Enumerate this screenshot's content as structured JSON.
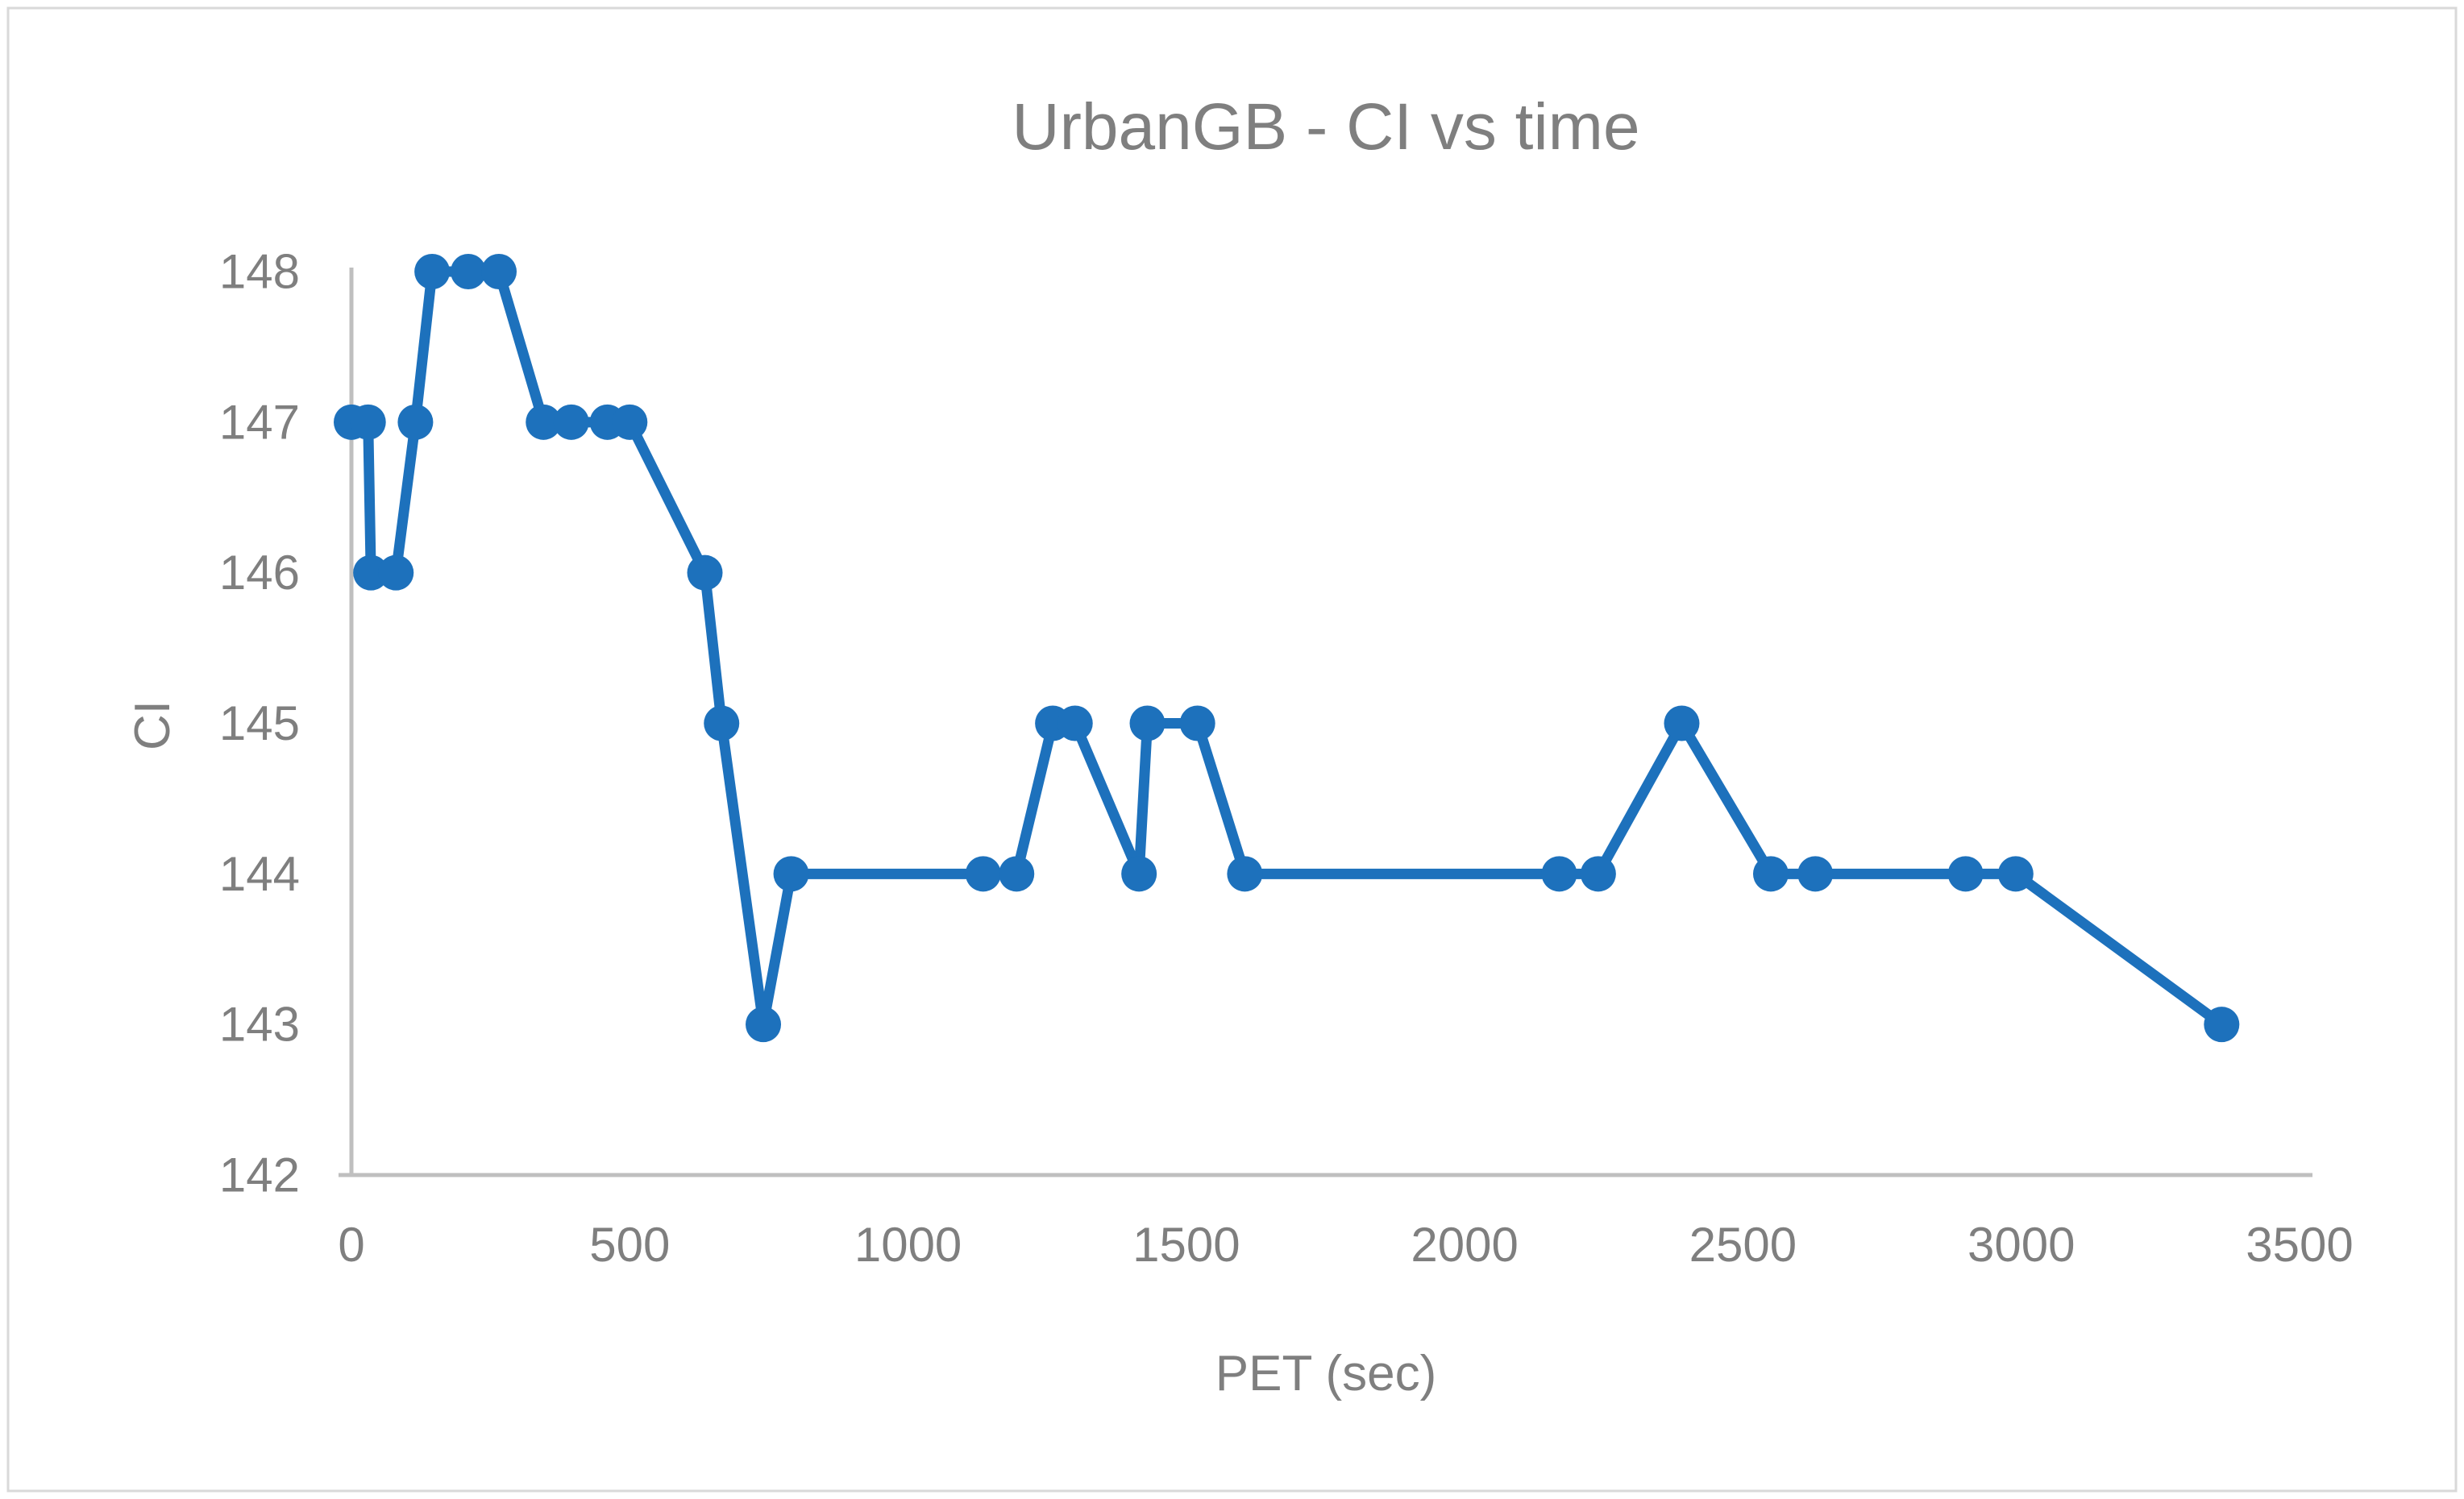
{
  "chart": {
    "title": "UrbanGB - CI vs time",
    "x_axis_title": "PET (sec)",
    "y_axis_title": "CI"
  },
  "colors": {
    "series": "#1d71bc",
    "axis_line": "#bfbfbf",
    "text": "#7f7f7f",
    "border": "#d9d9d9",
    "background": "#ffffff"
  },
  "chart_data": {
    "type": "line",
    "title": "UrbanGB - CI vs time",
    "xlabel": "PET (sec)",
    "ylabel": "CI",
    "xlim": [
      0,
      3500
    ],
    "ylim": [
      142,
      148
    ],
    "x_ticks": [
      0,
      500,
      1000,
      1500,
      2000,
      2500,
      3000,
      3500
    ],
    "y_ticks": [
      142,
      143,
      144,
      145,
      146,
      147,
      148
    ],
    "grid": false,
    "legend": false,
    "series": [
      {
        "name": "CI",
        "marker": "circle",
        "points": [
          [
            0,
            147
          ],
          [
            30,
            147
          ],
          [
            35,
            146
          ],
          [
            80,
            146
          ],
          [
            115,
            147
          ],
          [
            145,
            148
          ],
          [
            210,
            148
          ],
          [
            265,
            148
          ],
          [
            345,
            147
          ],
          [
            395,
            147
          ],
          [
            460,
            147
          ],
          [
            500,
            147
          ],
          [
            635,
            146
          ],
          [
            665,
            145
          ],
          [
            740,
            143
          ],
          [
            790,
            144
          ],
          [
            1135,
            144
          ],
          [
            1195,
            144
          ],
          [
            1260,
            145
          ],
          [
            1300,
            145
          ],
          [
            1415,
            144
          ],
          [
            1430,
            145
          ],
          [
            1520,
            145
          ],
          [
            1605,
            144
          ],
          [
            2170,
            144
          ],
          [
            2240,
            144
          ],
          [
            2390,
            145
          ],
          [
            2550,
            144
          ],
          [
            2630,
            144
          ],
          [
            2900,
            144
          ],
          [
            2990,
            144
          ],
          [
            3360,
            143
          ]
        ]
      }
    ]
  }
}
